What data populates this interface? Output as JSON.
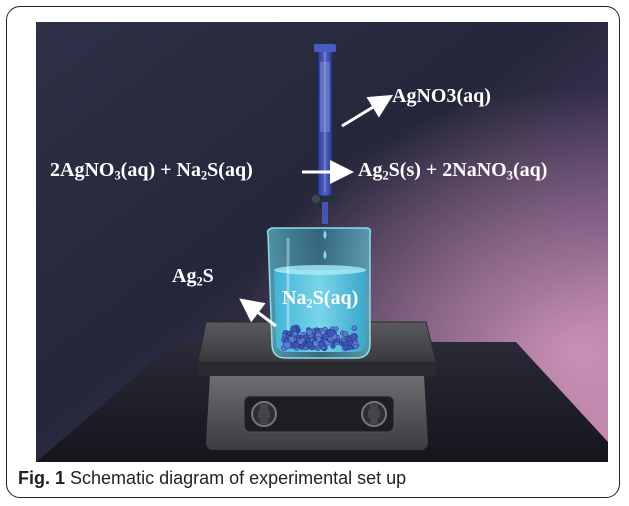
{
  "figure": {
    "reagent_label": "AgNO3(aq)",
    "equation": {
      "lhs": {
        "c1": "2AgNO",
        "s1": "3",
        "c2": "(aq) + Na",
        "s2": "2",
        "c3": "S(aq)"
      },
      "rhs": {
        "c1": "Ag",
        "s1": "2",
        "c2": "S(s) + 2NaNO",
        "s2": "3",
        "c3": "(aq)"
      }
    },
    "product_label": {
      "base": "Ag",
      "sub": "2",
      "tail": "S"
    },
    "solution_label": {
      "base": "Na",
      "sub": "2",
      "tail": "S(aq)"
    }
  },
  "caption": {
    "number": "Fig. 1",
    "text": "Schematic diagram of experimental set up"
  },
  "colors": {
    "background_dark": "#1d2034",
    "background_glow": "#a86a92",
    "liquid": "#4fc7e6",
    "burette": "#3a4aa6",
    "label": "#ffffff"
  }
}
